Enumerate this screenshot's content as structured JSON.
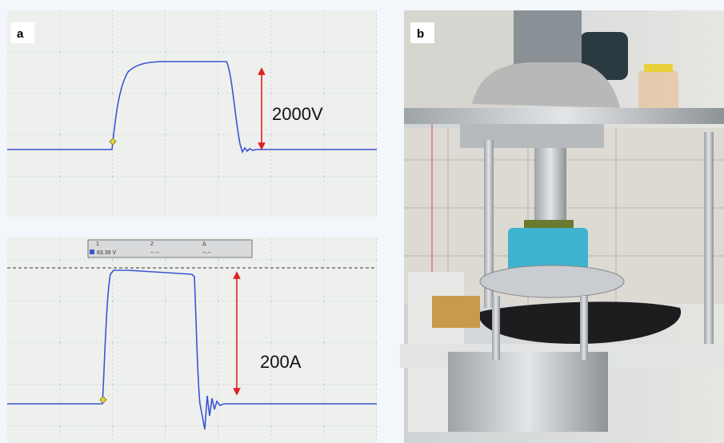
{
  "panel_a": {
    "label": "a",
    "top_trace": {
      "annotation": "2000V"
    },
    "bottom_trace": {
      "annotation": "200A",
      "toolbar": {
        "channel_1": "1",
        "reading": "83.39 V",
        "channel_2": "2",
        "delta": "Δ",
        "placeholder_2": "--.--",
        "placeholder_delta": "--.--"
      }
    }
  },
  "panel_b": {
    "label": "b"
  }
}
